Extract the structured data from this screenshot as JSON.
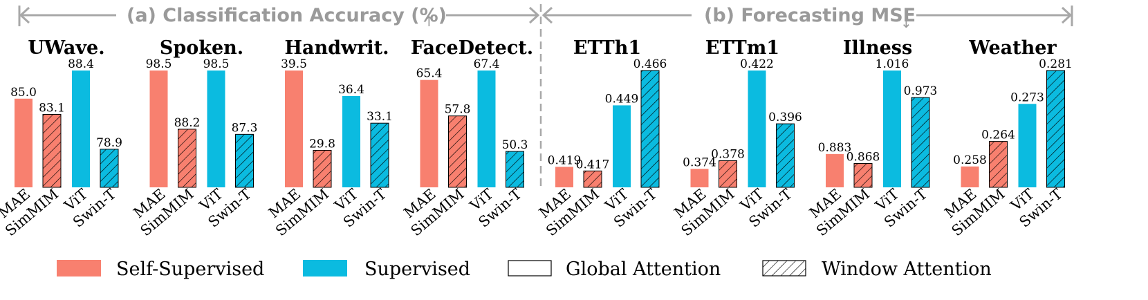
{
  "header": {
    "left_label": "(a) Classification Accuracy (%)",
    "left_arrow": "↑",
    "right_label": "(b) Forecasting MSE",
    "right_arrow": "↓"
  },
  "legend": {
    "self_supervised": "Self-Supervised",
    "supervised": "Supervised",
    "global_attention": "Global Attention",
    "window_attention": "Window Attention"
  },
  "colors": {
    "self_supervised": "#f8806f",
    "supervised": "#0bbbe0",
    "guide": "#a8a8a8"
  },
  "chart_data": [
    {
      "type": "bar",
      "group": "(a) Classification Accuracy (%)",
      "title": "UWave.",
      "categories": [
        "MAE",
        "SimMIM",
        "ViT",
        "Swin-T"
      ],
      "values": [
        85.0,
        83.1,
        88.4,
        78.9
      ],
      "labels": [
        "85.0",
        "83.1",
        "88.4",
        "78.9"
      ],
      "ylim": [
        74.3,
        88.4
      ]
    },
    {
      "type": "bar",
      "group": "(a) Classification Accuracy (%)",
      "title": "Spoken.",
      "categories": [
        "MAE",
        "SimMIM",
        "ViT",
        "Swin-T"
      ],
      "values": [
        98.5,
        88.2,
        98.5,
        87.3
      ],
      "labels": [
        "98.5",
        "88.2",
        "98.5",
        "87.3"
      ],
      "ylim": [
        78.0,
        98.5
      ]
    },
    {
      "type": "bar",
      "group": "(a) Classification Accuracy (%)",
      "title": "Handwrit.",
      "categories": [
        "MAE",
        "SimMIM",
        "ViT",
        "Swin-T"
      ],
      "values": [
        39.5,
        29.8,
        36.4,
        33.1
      ],
      "labels": [
        "39.5",
        "29.8",
        "36.4",
        "33.1"
      ],
      "ylim": [
        25.3,
        39.5
      ]
    },
    {
      "type": "bar",
      "group": "(a) Classification Accuracy (%)",
      "title": "FaceDetect.",
      "categories": [
        "MAE",
        "SimMIM",
        "ViT",
        "Swin-T"
      ],
      "values": [
        65.4,
        57.8,
        67.4,
        50.3
      ],
      "labels": [
        "65.4",
        "57.8",
        "67.4",
        "50.3"
      ],
      "ylim": [
        42.7,
        67.4
      ]
    },
    {
      "type": "bar",
      "group": "(b) Forecasting MSE",
      "title": "ETTh1",
      "categories": [
        "MAE",
        "SimMIM",
        "ViT",
        "Swin-T"
      ],
      "values": [
        0.419,
        0.417,
        0.449,
        0.466
      ],
      "labels": [
        "0.419",
        "0.417",
        "0.449",
        "0.466"
      ],
      "ylim": [
        0.409,
        0.466
      ]
    },
    {
      "type": "bar",
      "group": "(b) Forecasting MSE",
      "title": "ETTm1",
      "categories": [
        "MAE",
        "SimMIM",
        "ViT",
        "Swin-T"
      ],
      "values": [
        0.374,
        0.378,
        0.422,
        0.396
      ],
      "labels": [
        "0.374",
        "0.378",
        "0.422",
        "0.396"
      ],
      "ylim": [
        0.365,
        0.422
      ]
    },
    {
      "type": "bar",
      "group": "(b) Forecasting MSE",
      "title": "Illness",
      "categories": [
        "MAE",
        "SimMIM",
        "ViT",
        "Swin-T"
      ],
      "values": [
        0.883,
        0.868,
        1.016,
        0.973
      ],
      "labels": [
        "0.883",
        "0.868",
        "1.016",
        "0.973"
      ],
      "ylim": [
        0.83,
        1.016
      ]
    },
    {
      "type": "bar",
      "group": "(b) Forecasting MSE",
      "title": "Weather",
      "categories": [
        "MAE",
        "SimMIM",
        "ViT",
        "Swin-T"
      ],
      "values": [
        0.258,
        0.264,
        0.273,
        0.281
      ],
      "labels": [
        "0.258",
        "0.264",
        "0.273",
        "0.281"
      ],
      "ylim": [
        0.253,
        0.281
      ]
    }
  ]
}
